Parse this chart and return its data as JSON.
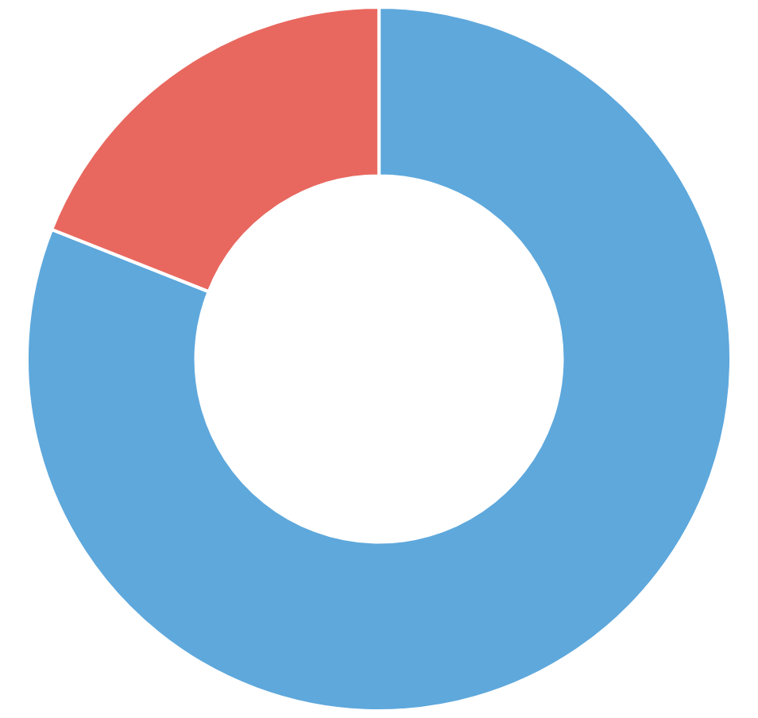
{
  "chart_data": {
    "type": "donut",
    "categories": [
      null,
      null
    ],
    "values": [
      81,
      19
    ],
    "colors": [
      "#5ea8dc",
      "#e8685f"
    ]
  }
}
